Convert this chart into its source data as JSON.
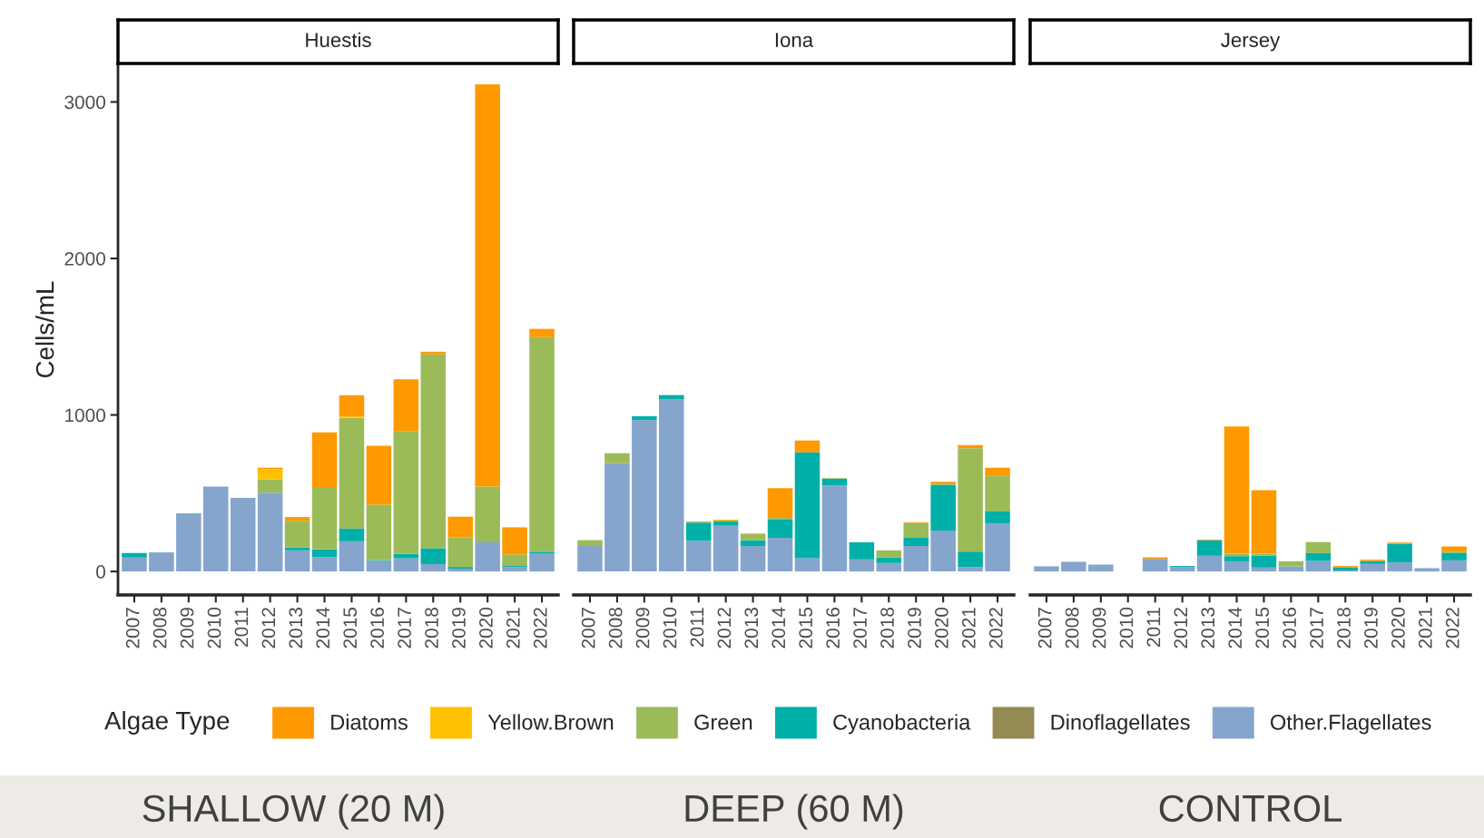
{
  "chart_data": [
    {
      "type": "bar",
      "stacked": true,
      "title": "Huestis",
      "ylabel": "Cells/mL",
      "legend_title": "Algae Type",
      "legend": "bottom",
      "grid": false,
      "annotations": [
        "SHALLOW (20 M)"
      ],
      "categories": [
        "2007",
        "2008",
        "2009",
        "2010",
        "2011",
        "2012",
        "2013",
        "2014",
        "2015",
        "2016",
        "2017",
        "2018",
        "2019",
        "2020",
        "2021",
        "2022"
      ],
      "ylim": [
        -150,
        3240
      ],
      "yticks": [
        0,
        1000,
        2000,
        3000
      ],
      "series": [
        {
          "name": "Other.Flagellates",
          "color": "#85a5cc",
          "values": [
            89,
            122,
            366,
            543,
            470,
            503,
            135,
            91,
            193,
            67,
            84,
            47,
            18,
            186,
            29,
            113
          ]
        },
        {
          "name": "Dinoflagellates",
          "color": "#948a54",
          "values": [
            null,
            null,
            null,
            null,
            null,
            null,
            null,
            null,
            null,
            null,
            null,
            null,
            null,
            null,
            null,
            null
          ]
        },
        {
          "name": "Cyanobacteria",
          "color": "#00b0a8",
          "values": [
            29,
            null,
            4,
            null,
            null,
            null,
            18,
            51,
            82,
            6,
            29,
            102,
            11,
            null,
            6,
            13
          ]
        },
        {
          "name": "Green",
          "color": "#9bbb59",
          "values": [
            null,
            null,
            null,
            null,
            null,
            85,
            171,
            392,
            707,
            353,
            785,
            1239,
            188,
            357,
            74,
            1371
          ]
        },
        {
          "name": "Yellow.Brown",
          "color": "#ffc000",
          "values": [
            null,
            null,
            null,
            null,
            null,
            64,
            null,
            null,
            9,
            null,
            null,
            null,
            null,
            null,
            null,
            null
          ]
        },
        {
          "name": "Diatoms",
          "color": "#ff9900",
          "values": [
            null,
            null,
            null,
            null,
            null,
            11,
            24,
            355,
            135,
            377,
            330,
            16,
            133,
            2570,
            173,
            53
          ]
        }
      ]
    },
    {
      "type": "bar",
      "stacked": true,
      "title": "Iona",
      "tick_labels": "x",
      "grid": false,
      "annotations": [
        "DEEP (60 M)"
      ],
      "categories": [
        "2007",
        "2008",
        "2009",
        "2010",
        "2011",
        "2012",
        "2013",
        "2014",
        "2015",
        "2016",
        "2017",
        "2018",
        "2019",
        "2020",
        "2021",
        "2022"
      ],
      "ylim": [
        -150,
        3240
      ],
      "series": [
        {
          "color": "#85a5cc",
          "values": [
            163,
            692,
            967,
            1098,
            196,
            292,
            163,
            215,
            85,
            550,
            77,
            54,
            163,
            262,
            27,
            308
          ]
        },
        {
          "color": "#00b0a8",
          "values": [
            null,
            null,
            25,
            29,
            116,
            27,
            37,
            116,
            677,
            42,
            110,
            36,
            52,
            290,
            100,
            75
          ]
        },
        {
          "color": "#9bbb59",
          "values": [
            37,
            64,
            null,
            null,
            7,
            6,
            38,
            11,
            null,
            4,
            null,
            45,
            95,
            10,
            661,
            227
          ]
        },
        {
          "color": "#ffc000",
          "values": [
            null,
            null,
            null,
            null,
            null,
            6,
            null,
            null,
            null,
            null,
            null,
            null,
            null,
            null,
            null,
            null
          ]
        },
        {
          "color": "#ff9900",
          "values": [
            null,
            null,
            null,
            null,
            null,
            null,
            4,
            191,
            75,
            null,
            null,
            null,
            5,
            11,
            20,
            53
          ]
        }
      ]
    },
    {
      "type": "bar",
      "stacked": true,
      "title": "Jersey",
      "tick_labels": "x",
      "grid": false,
      "annotations": [
        "CONTROL"
      ],
      "categories": [
        "2007",
        "2008",
        "2009",
        "2010",
        "2011",
        "2012",
        "2013",
        "2014",
        "2015",
        "2016",
        "2017",
        "2018",
        "2019",
        "2020",
        "2021",
        "2022"
      ],
      "ylim": [
        -150,
        3240
      ],
      "series": [
        {
          "color": "#85a5cc",
          "values": [
            33,
            62,
            44,
            null,
            81,
            29,
            100,
            65,
            25,
            33,
            67,
            6,
            48,
            58,
            21,
            71
          ]
        },
        {
          "color": "#00b0a8",
          "values": [
            null,
            null,
            null,
            null,
            null,
            6,
            100,
            33,
            77,
            null,
            50,
            21,
            19,
            119,
            null,
            46
          ]
        },
        {
          "color": "#9bbb59",
          "values": [
            null,
            null,
            null,
            null,
            null,
            null,
            null,
            15,
            11,
            32,
            71,
            null,
            null,
            null,
            null,
            12
          ]
        },
        {
          "color": "#ff9900",
          "values": [
            null,
            null,
            null,
            null,
            9,
            null,
            4,
            814,
            406,
            null,
            null,
            8,
            8,
            8,
            null,
            31
          ]
        }
      ]
    }
  ]
}
